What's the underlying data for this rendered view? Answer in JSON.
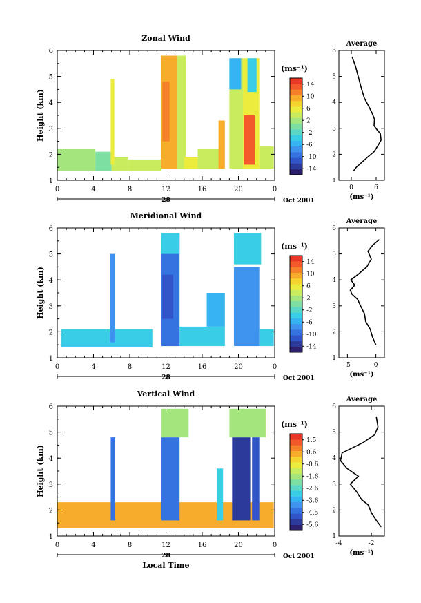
{
  "common": {
    "y_label": "Height (km)",
    "y_ticks": [
      "1",
      "2",
      "3",
      "4",
      "5",
      "6"
    ],
    "x_ticks": [
      "0",
      "4",
      "8",
      "12",
      "16",
      "20",
      "0"
    ],
    "day_label": "28",
    "month_label": "Oct 2001",
    "unit_label": "(ms⁻¹)",
    "avg_title": "Average",
    "avg_unit": "(ms⁻¹)",
    "xlabel_bottom": "Local Time"
  },
  "colormap": [
    "#2b1f6e",
    "#2c3a9c",
    "#2f55c8",
    "#3574e0",
    "#3d93ee",
    "#36b3f2",
    "#3acde6",
    "#5ad7c6",
    "#7ddfa2",
    "#a5e57e",
    "#c9ec5e",
    "#ecec3e",
    "#f6d430",
    "#f7ac2c",
    "#f5822a",
    "#f25a2c",
    "#ea3828"
  ],
  "chart_data": [
    {
      "type": "heatmap",
      "title": "Zonal Wind",
      "xlabel": "",
      "ylabel": "Height (km)",
      "xlim": [
        0,
        24
      ],
      "ylim": [
        1,
        6
      ],
      "colorbar": {
        "range": [
          -15,
          15
        ],
        "ticks": [
          "14",
          "10",
          "6",
          "2",
          "-2",
          "-6",
          "-10",
          "-14"
        ]
      },
      "average_profile": {
        "xlim": [
          -3,
          8
        ],
        "xticks": [
          "0",
          "6"
        ],
        "xtick_values": [
          0,
          6
        ],
        "points": [
          [
            0.5,
            1.35
          ],
          [
            1.2,
            1.5
          ],
          [
            2.6,
            1.7
          ],
          [
            4,
            1.9
          ],
          [
            5.5,
            2.1
          ],
          [
            6.5,
            2.35
          ],
          [
            7.2,
            2.55
          ],
          [
            7,
            2.8
          ],
          [
            6.2,
            2.95
          ],
          [
            5.5,
            3.1
          ],
          [
            5.6,
            3.35
          ],
          [
            5,
            3.6
          ],
          [
            4.2,
            3.85
          ],
          [
            3.2,
            4.15
          ],
          [
            2.5,
            4.5
          ],
          [
            2,
            4.8
          ],
          [
            1.5,
            5.1
          ],
          [
            1,
            5.4
          ],
          [
            0.2,
            5.75
          ]
        ]
      },
      "regions": [
        {
          "x": [
            0,
            4.2
          ],
          "y": [
            1.35,
            2.2
          ],
          "v": 2
        },
        {
          "x": [
            4.2,
            6
          ],
          "y": [
            1.35,
            2.1
          ],
          "v": 0
        },
        {
          "x": [
            6,
            7.8
          ],
          "y": [
            1.35,
            1.9
          ],
          "v": 3
        },
        {
          "x": [
            5.9,
            6.3
          ],
          "y": [
            1.6,
            4.9
          ],
          "v": 6
        },
        {
          "x": [
            7.8,
            11.5
          ],
          "y": [
            1.35,
            1.8
          ],
          "v": 4
        },
        {
          "x": [
            11.5,
            13.2
          ],
          "y": [
            1.45,
            5.8
          ],
          "v": 8
        },
        {
          "x": [
            11.6,
            12.4
          ],
          "y": [
            2.5,
            4.8
          ],
          "v": 11
        },
        {
          "x": [
            13.2,
            14.2
          ],
          "y": [
            1.45,
            5.8
          ],
          "v": 3
        },
        {
          "x": [
            14,
            15.5
          ],
          "y": [
            1.45,
            1.9
          ],
          "v": 5
        },
        {
          "x": [
            15.5,
            18
          ],
          "y": [
            1.45,
            2.2
          ],
          "v": 3
        },
        {
          "x": [
            17.8,
            18.5
          ],
          "y": [
            1.45,
            3.3
          ],
          "v": 9
        },
        {
          "x": [
            19,
            20.5
          ],
          "y": [
            1.45,
            5.7
          ],
          "v": 4
        },
        {
          "x": [
            19,
            20.3
          ],
          "y": [
            4.5,
            5.7
          ],
          "v": -6
        },
        {
          "x": [
            20.5,
            22.3
          ],
          "y": [
            1.45,
            5.7
          ],
          "v": 6
        },
        {
          "x": [
            20.6,
            21.8
          ],
          "y": [
            1.6,
            3.5
          ],
          "v": 12
        },
        {
          "x": [
            21,
            22
          ],
          "y": [
            4.4,
            5.7
          ],
          "v": -3
        },
        {
          "x": [
            22.3,
            23.9
          ],
          "y": [
            1.45,
            2.3
          ],
          "v": 4
        }
      ]
    },
    {
      "type": "heatmap",
      "title": "Meridional Wind",
      "xlabel": "",
      "ylabel": "Height (km)",
      "xlim": [
        0,
        24
      ],
      "ylim": [
        1,
        6
      ],
      "colorbar": {
        "range": [
          -15,
          15
        ],
        "ticks": [
          "14",
          "10",
          "6",
          "2",
          "-2",
          "-6",
          "-10",
          "-14"
        ]
      },
      "average_profile": {
        "xlim": [
          -6.5,
          1.5
        ],
        "xticks": [
          "-5",
          "0"
        ],
        "xtick_values": [
          -5,
          0
        ],
        "points": [
          [
            0,
            1.5
          ],
          [
            -0.6,
            1.8
          ],
          [
            -1,
            2.1
          ],
          [
            -1.8,
            2.4
          ],
          [
            -2,
            2.7
          ],
          [
            -2.7,
            3
          ],
          [
            -3.2,
            3.25
          ],
          [
            -4.2,
            3.45
          ],
          [
            -4.5,
            3.6
          ],
          [
            -3.7,
            3.8
          ],
          [
            -4.4,
            4
          ],
          [
            -3.2,
            4.2
          ],
          [
            -1.6,
            4.5
          ],
          [
            -0.8,
            4.8
          ],
          [
            -1.4,
            5.1
          ],
          [
            -0.5,
            5.35
          ],
          [
            0.6,
            5.55
          ]
        ]
      },
      "regions": [
        {
          "x": [
            0.4,
            10.5
          ],
          "y": [
            1.4,
            2.1
          ],
          "v": -4
        },
        {
          "x": [
            5.8,
            6.4
          ],
          "y": [
            1.6,
            5
          ],
          "v": -7
        },
        {
          "x": [
            11.5,
            13.5
          ],
          "y": [
            1.45,
            5.8
          ],
          "v": -8
        },
        {
          "x": [
            11.6,
            12.8
          ],
          "y": [
            2.5,
            4.2
          ],
          "v": -11
        },
        {
          "x": [
            11.5,
            13.5
          ],
          "y": [
            5,
            5.8
          ],
          "v": -3
        },
        {
          "x": [
            13.5,
            18.5
          ],
          "y": [
            1.45,
            2.2
          ],
          "v": -4
        },
        {
          "x": [
            16.5,
            18.5
          ],
          "y": [
            2.2,
            3.5
          ],
          "v": -5
        },
        {
          "x": [
            19.5,
            22.3
          ],
          "y": [
            1.45,
            4.5
          ],
          "v": -7
        },
        {
          "x": [
            19.5,
            22.5
          ],
          "y": [
            4.6,
            5.8
          ],
          "v": -3
        },
        {
          "x": [
            22.3,
            23.9
          ],
          "y": [
            1.45,
            2.1
          ],
          "v": -4
        }
      ]
    },
    {
      "type": "heatmap",
      "title": "Vertical Wind",
      "xlabel": "Local Time",
      "ylabel": "Height (km)",
      "xlim": [
        0,
        24
      ],
      "ylim": [
        1,
        6
      ],
      "colorbar": {
        "range": [
          -6,
          2
        ],
        "ticks": [
          "1.5",
          "0.6",
          "-0.6",
          "-1.6",
          "-2.6",
          "-3.6",
          "-4.5",
          "-5.6"
        ]
      },
      "average_profile": {
        "xlim": [
          -4,
          -1.2
        ],
        "xticks": [
          "-4",
          "-2"
        ],
        "xtick_values": [
          -4,
          -2
        ],
        "points": [
          [
            -1.4,
            1.35
          ],
          [
            -1.7,
            1.6
          ],
          [
            -2,
            1.9
          ],
          [
            -2.2,
            2.2
          ],
          [
            -2.6,
            2.4
          ],
          [
            -2.9,
            2.7
          ],
          [
            -3.3,
            3
          ],
          [
            -2.8,
            3.3
          ],
          [
            -3.5,
            3.6
          ],
          [
            -3.9,
            3.9
          ],
          [
            -3.8,
            4.2
          ],
          [
            -2.5,
            4.6
          ],
          [
            -1.8,
            4.9
          ],
          [
            -1.6,
            5.2
          ],
          [
            -1.7,
            5.6
          ]
        ]
      },
      "regions": [
        {
          "x": [
            0,
            23.9
          ],
          "y": [
            1.3,
            2.3
          ],
          "v": 0.5
        },
        {
          "x": [
            5.9,
            6.4
          ],
          "y": [
            1.6,
            4.8
          ],
          "v": -4.5
        },
        {
          "x": [
            11.5,
            13.5
          ],
          "y": [
            1.6,
            4.8
          ],
          "v": -4.2
        },
        {
          "x": [
            11.5,
            14.5
          ],
          "y": [
            4.8,
            5.9
          ],
          "v": -1.6
        },
        {
          "x": [
            17.6,
            18.3
          ],
          "y": [
            1.6,
            3.6
          ],
          "v": -2.8
        },
        {
          "x": [
            19.3,
            21.3
          ],
          "y": [
            1.6,
            4.8
          ],
          "v": -5.2
        },
        {
          "x": [
            21.5,
            22.3
          ],
          "y": [
            1.6,
            4.8
          ],
          "v": -4.6
        },
        {
          "x": [
            19,
            23
          ],
          "y": [
            4.8,
            5.9
          ],
          "v": -1.6
        }
      ]
    }
  ]
}
